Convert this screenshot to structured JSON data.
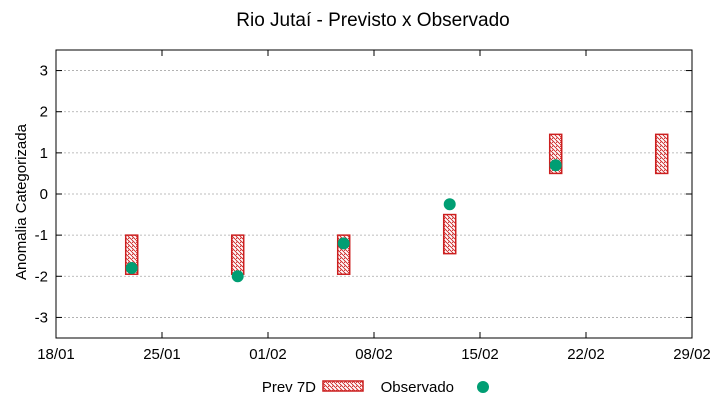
{
  "chart_data": {
    "type": "range-and-scatter",
    "title": "Rio Jutaí - Previsto x Observado",
    "xlabel": "",
    "ylabel": "Anomalia Categorizada",
    "x_range_days": [
      0,
      42
    ],
    "xticks": [
      {
        "day": 0,
        "label": "18/01"
      },
      {
        "day": 7,
        "label": "25/01"
      },
      {
        "day": 14,
        "label": "01/02"
      },
      {
        "day": 21,
        "label": "08/02"
      },
      {
        "day": 28,
        "label": "15/02"
      },
      {
        "day": 35,
        "label": "22/02"
      },
      {
        "day": 42,
        "label": "29/02"
      }
    ],
    "ylim": [
      -3.5,
      3.5
    ],
    "yticks": [
      {
        "value": 3,
        "label": "3"
      },
      {
        "value": 2,
        "label": "2"
      },
      {
        "value": 1,
        "label": "1"
      },
      {
        "value": 0,
        "label": "0"
      },
      {
        "value": -1,
        "label": "-1"
      },
      {
        "value": -2,
        "label": "-2"
      },
      {
        "value": -3,
        "label": "-3"
      }
    ],
    "grid": true,
    "series": [
      {
        "name": "Prev 7D",
        "kind": "range-box",
        "color": "#cc1f1f",
        "points": [
          {
            "day": 5,
            "low": -1.95,
            "high": -1.0
          },
          {
            "day": 12,
            "low": -1.95,
            "high": -1.0
          },
          {
            "day": 19,
            "low": -1.95,
            "high": -1.0
          },
          {
            "day": 26,
            "low": -1.45,
            "high": -0.5
          },
          {
            "day": 33,
            "low": 0.5,
            "high": 1.45
          },
          {
            "day": 40,
            "low": 0.5,
            "high": 1.45
          }
        ]
      },
      {
        "name": "Observado",
        "kind": "scatter",
        "color": "#009e73",
        "points": [
          {
            "day": 5,
            "value": -1.8
          },
          {
            "day": 12,
            "value": -2.0
          },
          {
            "day": 19,
            "value": -1.2
          },
          {
            "day": 26,
            "value": -0.25
          },
          {
            "day": 33,
            "value": 0.7
          }
        ]
      }
    ],
    "legend": {
      "position": "bottom-center",
      "entries": [
        "Prev 7D",
        "Observado"
      ]
    }
  }
}
